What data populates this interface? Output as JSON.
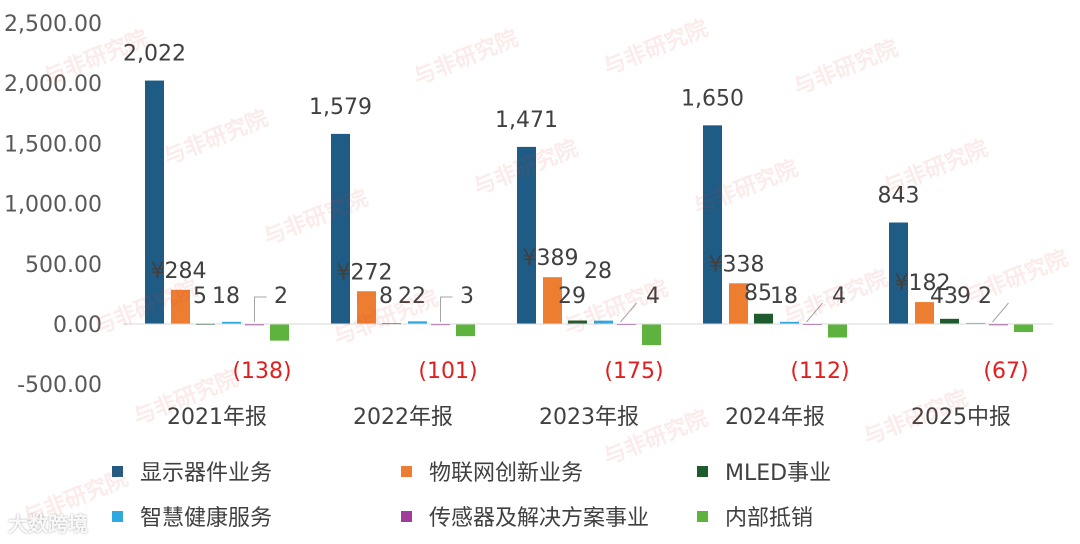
{
  "chart_data": {
    "type": "bar",
    "categories": [
      "2021年报",
      "2022年报",
      "2023年报",
      "2024年报",
      "2025中报"
    ],
    "y_ticks": [
      "2,500.00",
      "2,000.00",
      "1,500.00",
      "1,000.00",
      "500.00",
      "0.00",
      "-500.00"
    ],
    "ylim": [
      -500,
      2500
    ],
    "grid": false,
    "legend_position": "bottom",
    "series": [
      {
        "name": "显示器件业务",
        "color": "#1F5C85",
        "values": [
          2022,
          1579,
          1471,
          1650,
          843
        ],
        "labels": [
          "2,022",
          "1,579",
          "1,471",
          "1,650",
          "843"
        ]
      },
      {
        "name": "物联网创新业务",
        "color": "#ED7D31",
        "values": [
          284,
          272,
          389,
          338,
          182
        ],
        "labels": [
          "¥284",
          "¥272",
          "¥389",
          "¥338",
          "¥182"
        ]
      },
      {
        "name": "MLED事业",
        "color": "#1E5B2F",
        "values": [
          5,
          8,
          29,
          85,
          43
        ],
        "labels": [
          "5",
          "8",
          "29",
          "85",
          "43"
        ]
      },
      {
        "name": "智慧健康服务",
        "color": "#2EA8DF",
        "values": [
          18,
          22,
          28,
          18,
          9
        ],
        "labels": [
          "18",
          "22",
          "28",
          "18",
          "9"
        ]
      },
      {
        "name": "传感器及解决方案事业",
        "color": "#A03C9A",
        "values": [
          2,
          3,
          4,
          4,
          2
        ],
        "labels": [
          "2",
          "3",
          "4",
          "4",
          "2"
        ]
      },
      {
        "name": "内部抵销",
        "color": "#5DB33E",
        "values": [
          -138,
          -101,
          -175,
          -112,
          -67
        ],
        "labels": [
          "(138)",
          "(101)",
          "(175)",
          "(112)",
          "(67)"
        ]
      }
    ]
  },
  "watermark_text": "与非研究院",
  "brand_text": "大数跨境"
}
